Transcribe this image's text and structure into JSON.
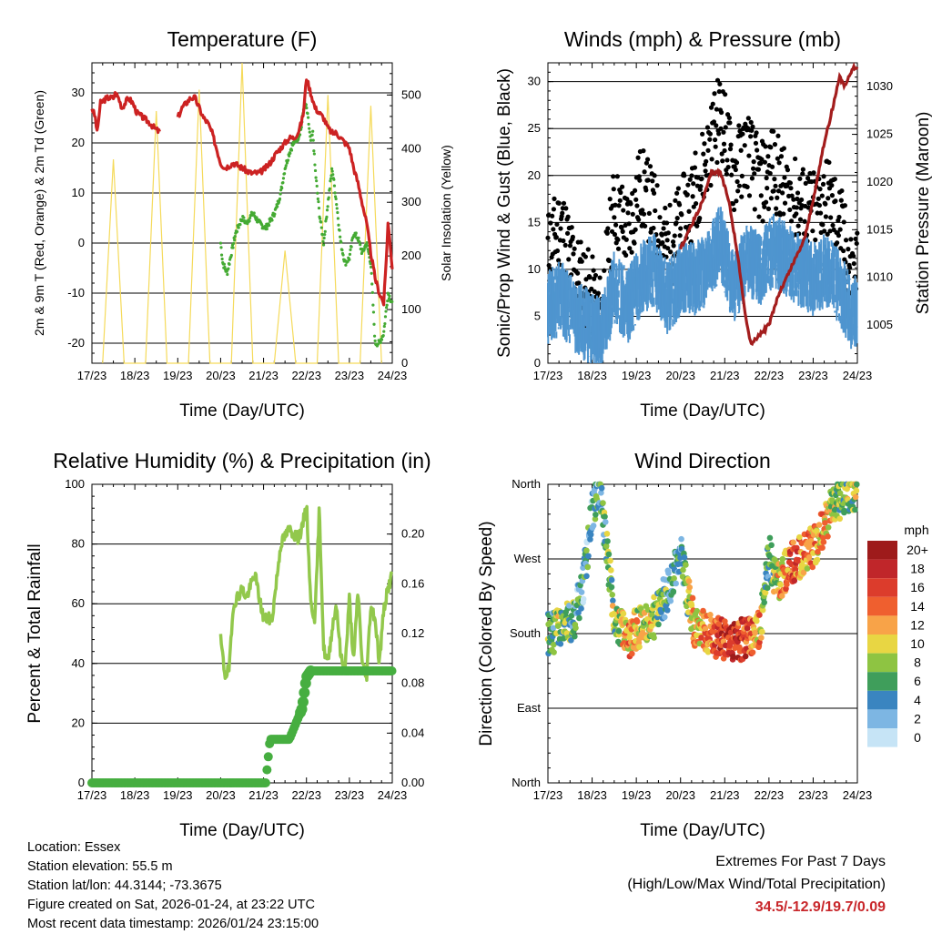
{
  "chart_data": [
    {
      "type": "line",
      "title": "Temperature (F)",
      "xlabel": "Time (Day/UTC)",
      "ylabel": "2m & 9m T (Red, Orange) & 2m Td (Green)",
      "y2label": "Solar Insolation (Yellow)",
      "x_ticks": [
        "17/23",
        "18/23",
        "19/23",
        "20/23",
        "21/23",
        "22/23",
        "23/23",
        "24/23"
      ],
      "ylim": [
        -24,
        36
      ],
      "y_ticks": [
        -20,
        -10,
        0,
        10,
        20,
        30
      ],
      "y2lim": [
        0,
        560
      ],
      "y2_ticks": [
        0,
        100,
        200,
        300,
        400,
        500
      ],
      "series": [
        {
          "name": "2m T",
          "color": "#cc2222",
          "x": [
            0,
            0.08,
            0.12,
            0.2,
            0.35,
            0.5,
            0.55,
            0.62,
            0.7,
            0.85,
            0.95,
            1.05,
            1.2,
            1.35,
            1.45,
            1.6,
            1.75,
            1.85,
            2.0,
            2.1,
            2.2,
            2.3,
            2.4,
            2.5,
            2.6,
            2.7,
            2.8,
            2.9,
            3.0,
            3.1,
            3.3,
            3.5,
            3.7,
            3.9,
            4.05,
            4.15,
            4.3,
            4.5,
            4.6,
            4.7,
            4.8,
            4.88,
            4.93,
            5.0,
            5.1,
            5.2,
            5.3,
            5.4,
            5.5,
            5.6,
            5.7,
            5.8,
            5.9,
            6.0,
            6.1,
            6.2,
            6.3,
            6.4,
            6.5,
            6.6,
            6.7,
            6.8,
            6.85,
            6.9,
            6.95,
            7.0
          ],
          "values": [
            27,
            25,
            22,
            28,
            29,
            29,
            30,
            29,
            27,
            29,
            28,
            26,
            25,
            24,
            23,
            22,
            null,
            null,
            25,
            27,
            28,
            29,
            29,
            27,
            25,
            24,
            22,
            19,
            16,
            15,
            16,
            15,
            14,
            14,
            15,
            16,
            18,
            20,
            21,
            21,
            22,
            24,
            26,
            33,
            30,
            27,
            26,
            25,
            23,
            22,
            22,
            21,
            20,
            19,
            15,
            12,
            8,
            4,
            -2,
            -7,
            -10,
            -12,
            -5,
            4,
            0,
            -5
          ]
        },
        {
          "name": "2m Td",
          "color": "#44aa33",
          "x": [
            3.0,
            3.05,
            3.15,
            3.25,
            3.35,
            3.5,
            3.6,
            3.75,
            3.9,
            4.05,
            4.2,
            4.3,
            4.4,
            4.5,
            4.6,
            4.7,
            4.8,
            4.88,
            4.95,
            5.0,
            5.05,
            5.1,
            5.15,
            5.2,
            5.3,
            5.4,
            5.5,
            5.6,
            5.7,
            5.8,
            5.9,
            6.0,
            6.1,
            6.2,
            6.3,
            6.4,
            6.5,
            6.6,
            6.7,
            6.8,
            6.9,
            7.0
          ],
          "values": [
            0,
            -4,
            -6,
            -2,
            2,
            5,
            4,
            6,
            4,
            3,
            5,
            7,
            10,
            15,
            18,
            20,
            21,
            23,
            28,
            27,
            24,
            20,
            22,
            15,
            6,
            0,
            8,
            15,
            8,
            0,
            -4,
            -3,
            2,
            1,
            -2,
            0,
            -4,
            -20,
            -20,
            -18,
            -10,
            -12
          ]
        },
        {
          "name": "Solar Insolation",
          "color": "#f5da5a",
          "axis": "y2",
          "x": [
            0.25,
            0.5,
            0.75,
            1.25,
            1.5,
            1.75,
            2.25,
            2.5,
            2.75,
            3.25,
            3.5,
            3.75,
            4.25,
            4.5,
            4.75,
            5.25,
            5.5,
            5.75,
            6.25,
            6.5,
            6.75
          ],
          "values": [
            0,
            380,
            0,
            0,
            470,
            0,
            0,
            510,
            0,
            0,
            560,
            0,
            0,
            210,
            0,
            0,
            500,
            0,
            0,
            480,
            0
          ]
        }
      ]
    },
    {
      "type": "scatter",
      "title": "Winds (mph) & Pressure (mb)",
      "xlabel": "Time (Day/UTC)",
      "ylabel": "Sonic/Prop Wind & Gust (Blue, Black)",
      "y2label": "Station Pressure (Maroon)",
      "x_ticks": [
        "17/23",
        "18/23",
        "19/23",
        "20/23",
        "21/23",
        "22/23",
        "23/23",
        "24/23"
      ],
      "ylim": [
        0,
        32
      ],
      "y_ticks": [
        0,
        5,
        10,
        15,
        20,
        25,
        30
      ],
      "y2lim": [
        1001,
        1032.5
      ],
      "y2_ticks": [
        1005,
        1010,
        1015,
        1020,
        1025,
        1030
      ],
      "series": [
        {
          "name": "Wind",
          "color": "#4f95cf",
          "x": [
            0,
            0.3,
            0.6,
            0.9,
            1.2,
            1.5,
            1.8,
            2.1,
            2.4,
            2.7,
            3.0,
            3.3,
            3.6,
            3.9,
            4.2,
            4.5,
            4.8,
            5.1,
            5.4,
            5.7,
            6.0,
            6.3,
            6.6,
            6.9,
            7.0
          ],
          "values": [
            6,
            7,
            5,
            4,
            3,
            8,
            6,
            9,
            10,
            7,
            9,
            9,
            10,
            13,
            8,
            11,
            10,
            12,
            11,
            10,
            9,
            10,
            8,
            5,
            6
          ]
        },
        {
          "name": "Gust",
          "color": "#000000",
          "x": [
            0,
            0.3,
            0.6,
            0.9,
            1.2,
            1.5,
            1.8,
            2.1,
            2.4,
            2.7,
            3.0,
            3.3,
            3.6,
            3.9,
            4.2,
            4.5,
            4.8,
            5.1,
            5.4,
            5.7,
            6.0,
            6.3,
            6.6,
            6.9,
            7.0
          ],
          "values": [
            12,
            15,
            10,
            8,
            5,
            17,
            14,
            19,
            16,
            12,
            15,
            18,
            22,
            27,
            20,
            23,
            19,
            21,
            18,
            17,
            16,
            18,
            15,
            9,
            11
          ]
        },
        {
          "name": "Station Pressure",
          "color": "#a31d1d",
          "axis": "y2",
          "x": [
            3.0,
            3.2,
            3.5,
            3.7,
            3.9,
            4.1,
            4.3,
            4.5,
            4.6,
            4.8,
            5.0,
            5.2,
            5.4,
            5.6,
            5.8,
            6.0,
            6.2,
            6.4,
            6.5,
            6.6,
            6.7,
            6.8,
            6.9,
            7.0
          ],
          "values": [
            1013,
            1015,
            1018,
            1021,
            1021,
            1018,
            1012,
            1005,
            1003,
            1004,
            1005,
            1008,
            1010,
            1012,
            1014,
            1018,
            1023,
            1027,
            1029,
            1031,
            1030,
            1031,
            1032,
            1032
          ]
        }
      ]
    },
    {
      "type": "line",
      "title": "Relative Humidity (%) & Precipitation (in)",
      "xlabel": "Time (Day/UTC)",
      "ylabel": "Percent & Total Rainfall",
      "x_ticks": [
        "17/23",
        "18/23",
        "19/23",
        "20/23",
        "21/23",
        "22/23",
        "23/23",
        "24/23"
      ],
      "ylim": [
        0,
        100
      ],
      "y_ticks": [
        0,
        20,
        40,
        60,
        80,
        100
      ],
      "y2lim": [
        0,
        0.24
      ],
      "y2_ticks": [
        "0.00",
        "0.04",
        "0.08",
        "0.12",
        "0.16",
        "0.20"
      ],
      "series": [
        {
          "name": "Relative Humidity",
          "color": "#92c84c",
          "x": [
            3.0,
            3.1,
            3.2,
            3.3,
            3.5,
            3.6,
            3.8,
            3.9,
            4.0,
            4.2,
            4.4,
            4.6,
            4.8,
            4.9,
            5.0,
            5.1,
            5.2,
            5.3,
            5.4,
            5.5,
            5.6,
            5.7,
            5.8,
            5.9,
            6.0,
            6.1,
            6.2,
            6.3,
            6.4,
            6.5,
            6.6,
            6.7,
            6.8,
            6.9,
            7.0
          ],
          "values": [
            48,
            36,
            38,
            60,
            65,
            62,
            70,
            62,
            55,
            55,
            80,
            85,
            82,
            85,
            94,
            60,
            55,
            92,
            45,
            40,
            52,
            60,
            42,
            38,
            62,
            40,
            65,
            40,
            35,
            60,
            55,
            40,
            58,
            65,
            70
          ]
        },
        {
          "name": "Total Rainfall",
          "color": "#46ae40",
          "axis": "y2",
          "x": [
            0,
            2.8,
            4.05,
            4.15,
            4.6,
            4.9,
            5.0,
            5.1,
            7.0
          ],
          "values": [
            0.0,
            0.0,
            0.0,
            0.035,
            0.035,
            0.06,
            0.085,
            0.09,
            0.09
          ]
        }
      ]
    },
    {
      "type": "scatter",
      "title": "Wind Direction",
      "xlabel": "Time (Day/UTC)",
      "ylabel": "Direction (Colored By Speed)",
      "x_ticks": [
        "17/23",
        "18/23",
        "19/23",
        "20/23",
        "21/23",
        "22/23",
        "23/23",
        "24/23"
      ],
      "y_ticks": [
        "North",
        "East",
        "South",
        "West",
        "North"
      ],
      "ylim": [
        0,
        360
      ],
      "colorbar_title": "mph",
      "colorbar_labels": [
        "20+",
        "18",
        "16",
        "14",
        "12",
        "10",
        "8",
        "6",
        "4",
        "2",
        "0"
      ],
      "colorbar_colors": [
        "#9e1b1b",
        "#c0262a",
        "#dc3c2c",
        "#ef5f2f",
        "#f8a348",
        "#e8d643",
        "#8ec442",
        "#3f9e5b",
        "#3a85c0",
        "#7db6e3",
        "#c6e4f6"
      ],
      "x": [
        0,
        0.3,
        0.6,
        0.8,
        1.0,
        1.2,
        1.5,
        1.8,
        2.1,
        2.4,
        2.7,
        3.0,
        3.3,
        3.6,
        3.9,
        4.2,
        4.5,
        4.8,
        5.0,
        5.2,
        5.5,
        5.8,
        6.1,
        6.4,
        6.7,
        7.0
      ],
      "values": [
        180,
        185,
        200,
        240,
        330,
        350,
        200,
        175,
        190,
        200,
        230,
        275,
        190,
        180,
        175,
        170,
        175,
        185,
        275,
        240,
        265,
        275,
        290,
        330,
        350,
        355
      ],
      "speeds": [
        6,
        8,
        5,
        4,
        3,
        5,
        8,
        12,
        10,
        9,
        5,
        3,
        11,
        13,
        16,
        17,
        15,
        12,
        5,
        10,
        15,
        13,
        12,
        10,
        7,
        9
      ]
    }
  ],
  "info": {
    "location": "Location: Essex",
    "elevation": "Station elevation: 55.5 m",
    "latlon": "Station lat/lon: 44.3144; -73.3675",
    "created": "Figure created on Sat, 2026-01-24, at 23:22 UTC",
    "recent": "Most recent data timestamp: 2026/01/24 23:15:00"
  },
  "extremes": {
    "line1": "Extremes For Past 7 Days",
    "line2": "(High/Low/Max Wind/Total Precipitation)",
    "values": "34.5/-12.9/19.7/0.09"
  }
}
